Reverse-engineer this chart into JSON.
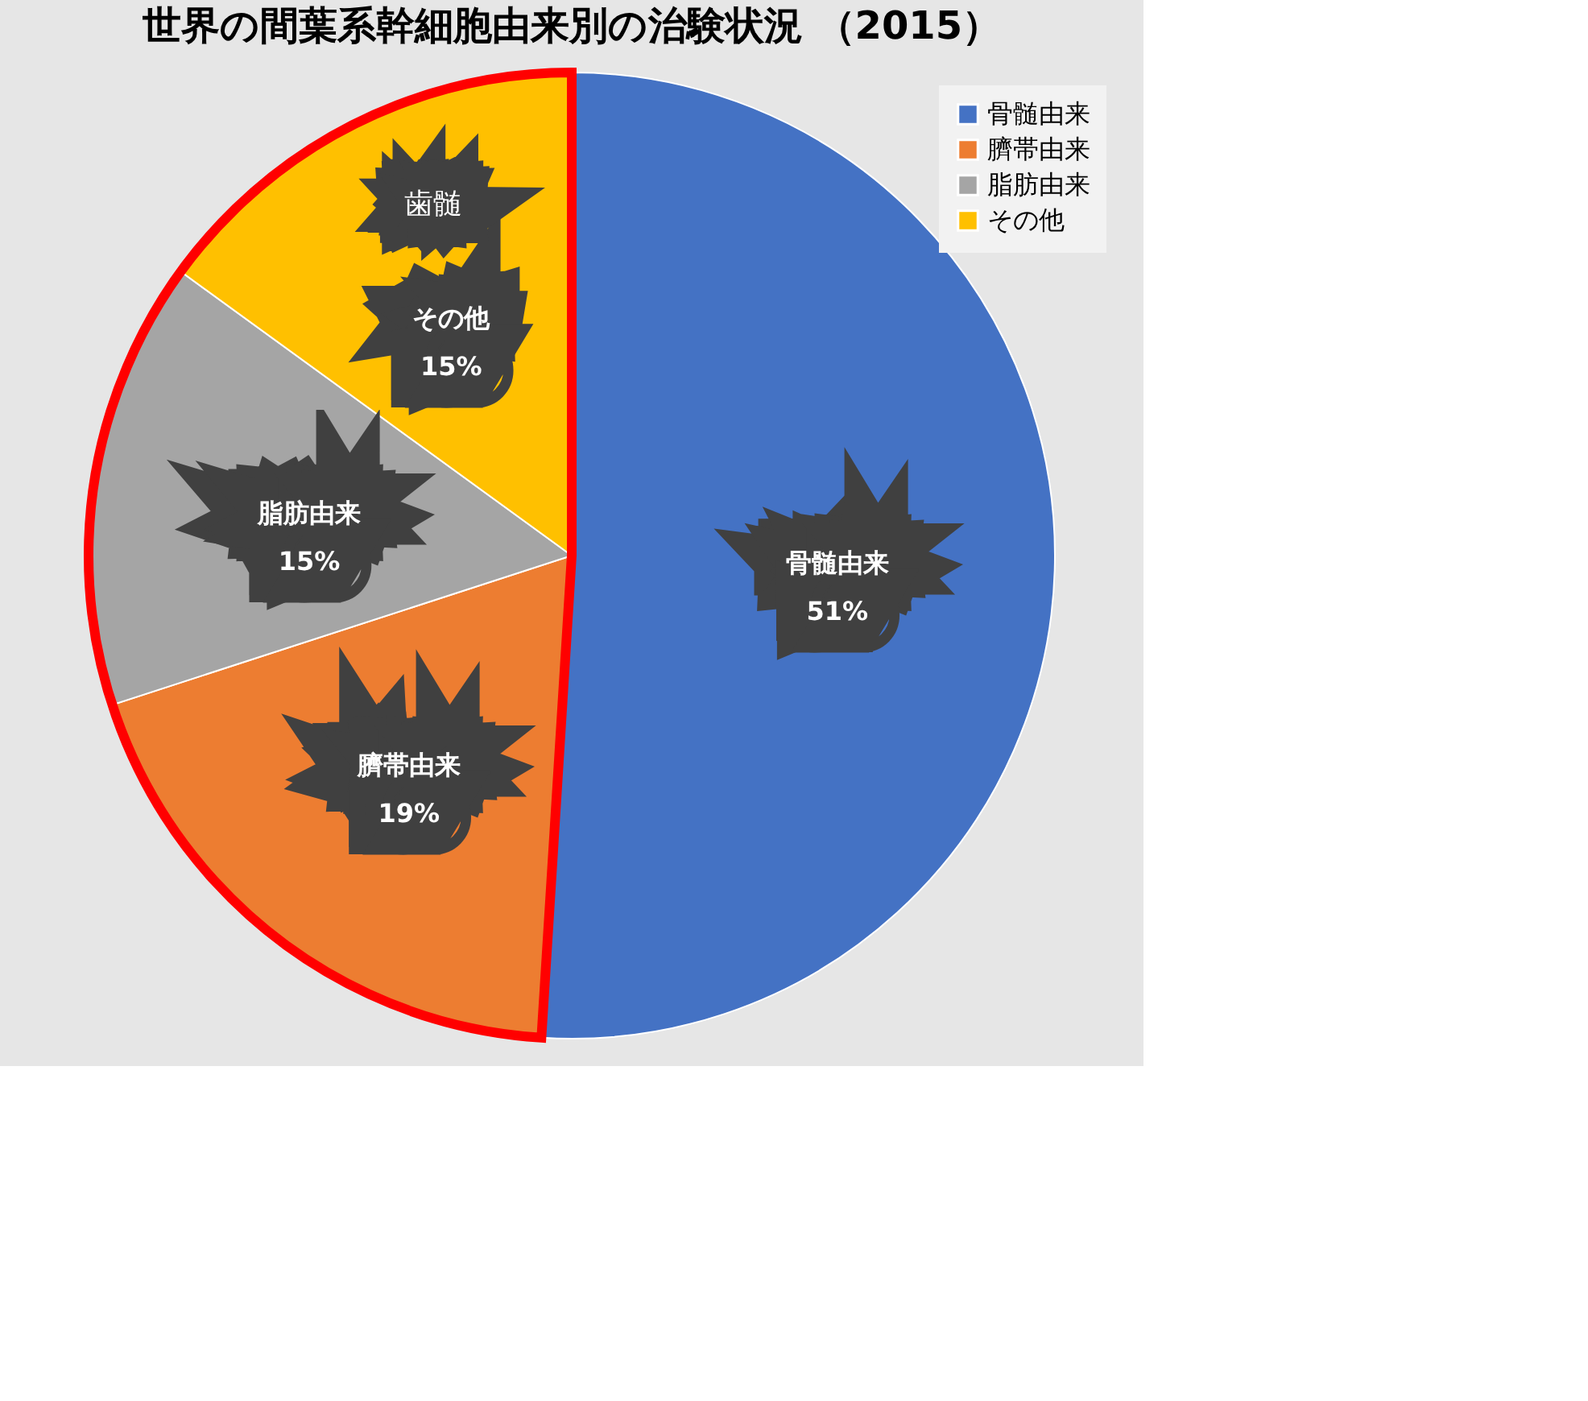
{
  "chart_data": {
    "type": "pie",
    "title": "世界の間葉系幹細胞由来別の治験状況 （2015）",
    "categories": [
      "骨髄由来",
      "臍帯由来",
      "脂肪由来",
      "その他"
    ],
    "values": [
      51,
      19,
      15,
      15
    ],
    "colors": [
      "#4472c4",
      "#ed7d31",
      "#a5a5a5",
      "#ffc000"
    ],
    "value_labels": [
      "51%",
      "19%",
      "15%",
      "15%"
    ],
    "annotations": [
      "歯髄"
    ],
    "legend": "top right"
  }
}
